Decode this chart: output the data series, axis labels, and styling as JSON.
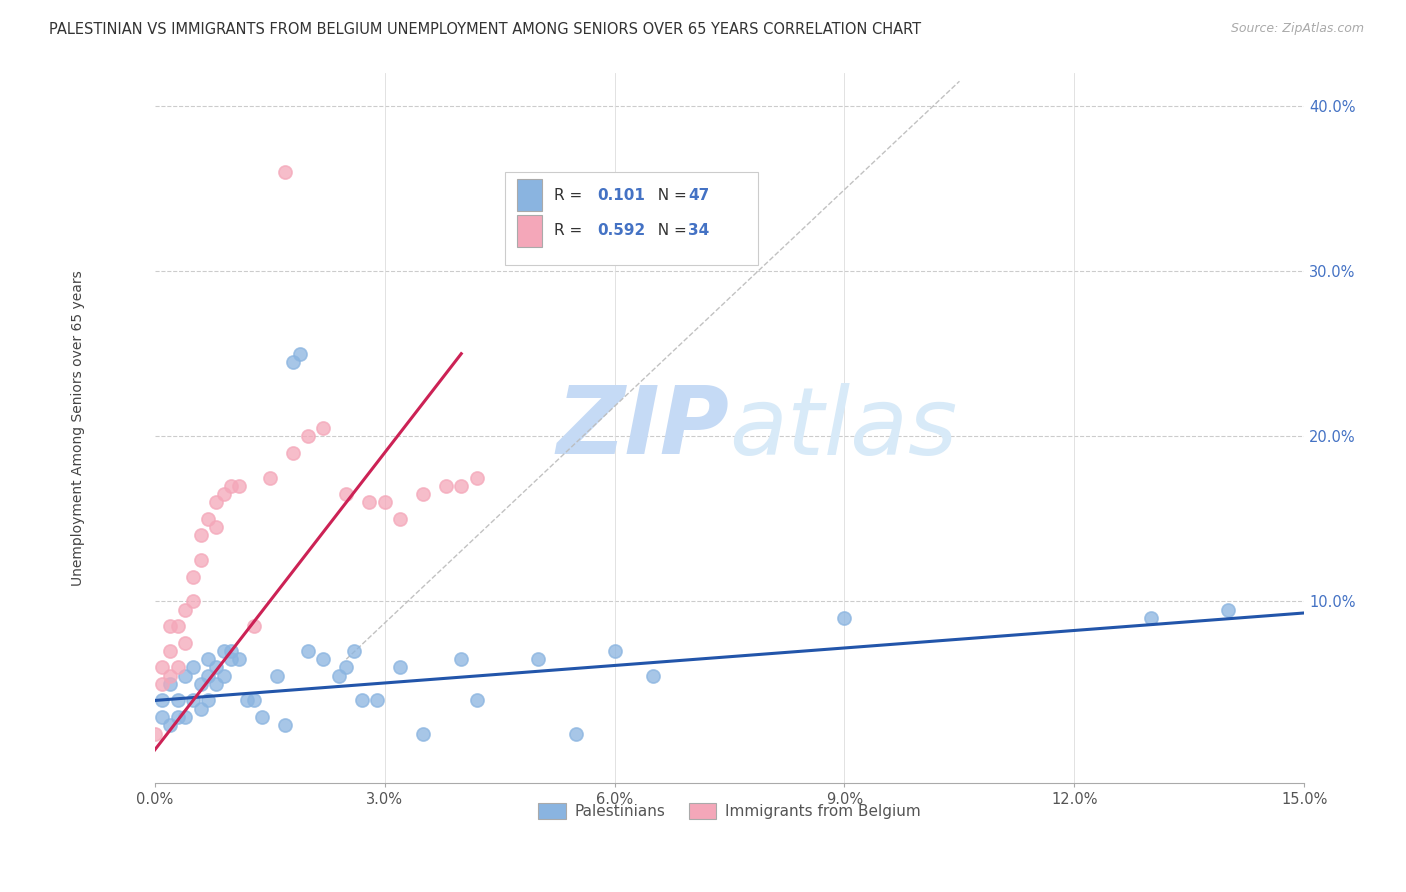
{
  "title": "PALESTINIAN VS IMMIGRANTS FROM BELGIUM UNEMPLOYMENT AMONG SENIORS OVER 65 YEARS CORRELATION CHART",
  "source": "Source: ZipAtlas.com",
  "ylabel": "Unemployment Among Seniors over 65 years",
  "xlim": [
    0,
    0.15
  ],
  "ylim": [
    -0.01,
    0.42
  ],
  "xticks": [
    0.0,
    0.03,
    0.06,
    0.09,
    0.12,
    0.15
  ],
  "yticks": [
    0.0,
    0.1,
    0.2,
    0.3,
    0.4
  ],
  "blue_R": "0.101",
  "blue_N": "47",
  "pink_R": "0.592",
  "pink_N": "34",
  "blue_color": "#8ab4e0",
  "pink_color": "#f4a7b9",
  "blue_line_color": "#2255aa",
  "pink_line_color": "#cc2255",
  "watermark_color": "#ddeeff",
  "legend_label_blue": "Palestinians",
  "legend_label_pink": "Immigrants from Belgium",
  "blue_x": [
    0.001,
    0.001,
    0.002,
    0.002,
    0.003,
    0.003,
    0.004,
    0.004,
    0.005,
    0.005,
    0.006,
    0.006,
    0.007,
    0.007,
    0.007,
    0.008,
    0.008,
    0.009,
    0.009,
    0.01,
    0.01,
    0.011,
    0.012,
    0.013,
    0.014,
    0.016,
    0.017,
    0.018,
    0.019,
    0.02,
    0.022,
    0.024,
    0.025,
    0.026,
    0.027,
    0.029,
    0.032,
    0.035,
    0.04,
    0.042,
    0.05,
    0.055,
    0.06,
    0.065,
    0.09,
    0.13,
    0.14
  ],
  "blue_y": [
    0.03,
    0.04,
    0.025,
    0.05,
    0.03,
    0.04,
    0.03,
    0.055,
    0.04,
    0.06,
    0.035,
    0.05,
    0.04,
    0.055,
    0.065,
    0.05,
    0.06,
    0.055,
    0.07,
    0.065,
    0.07,
    0.065,
    0.04,
    0.04,
    0.03,
    0.055,
    0.025,
    0.245,
    0.25,
    0.07,
    0.065,
    0.055,
    0.06,
    0.07,
    0.04,
    0.04,
    0.06,
    0.02,
    0.065,
    0.04,
    0.065,
    0.02,
    0.07,
    0.055,
    0.09,
    0.09,
    0.095
  ],
  "pink_x": [
    0.0,
    0.001,
    0.001,
    0.002,
    0.002,
    0.002,
    0.003,
    0.003,
    0.004,
    0.004,
    0.005,
    0.005,
    0.006,
    0.006,
    0.007,
    0.008,
    0.008,
    0.009,
    0.01,
    0.011,
    0.013,
    0.015,
    0.017,
    0.018,
    0.02,
    0.022,
    0.025,
    0.028,
    0.03,
    0.032,
    0.035,
    0.038,
    0.04,
    0.042
  ],
  "pink_y": [
    0.02,
    0.05,
    0.06,
    0.055,
    0.07,
    0.085,
    0.06,
    0.085,
    0.075,
    0.095,
    0.1,
    0.115,
    0.125,
    0.14,
    0.15,
    0.145,
    0.16,
    0.165,
    0.17,
    0.17,
    0.085,
    0.175,
    0.36,
    0.19,
    0.2,
    0.205,
    0.165,
    0.16,
    0.16,
    0.15,
    0.165,
    0.17,
    0.17,
    0.175
  ],
  "blue_trend_x": [
    0.0,
    0.15
  ],
  "blue_trend_y": [
    0.04,
    0.093
  ],
  "pink_trend_x": [
    0.0,
    0.04
  ],
  "pink_trend_y": [
    0.01,
    0.25
  ]
}
